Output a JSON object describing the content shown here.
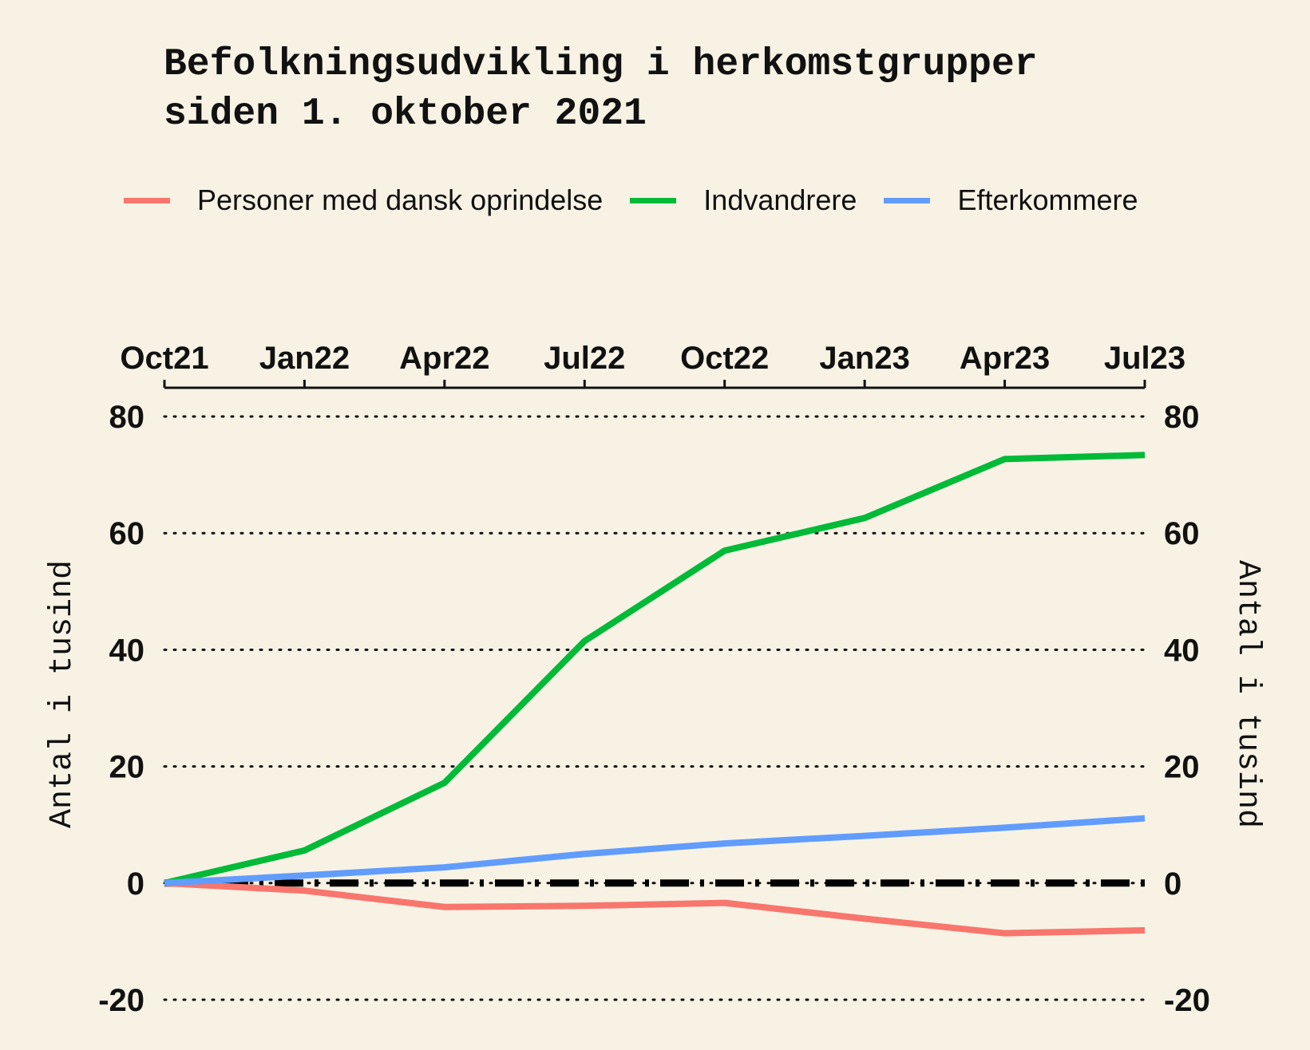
{
  "chart_data": {
    "type": "line",
    "title": "Befolkningsudvikling i herkomstgrupper\nsiden 1. oktober 2021",
    "x": [
      "Oct21",
      "Jan22",
      "Apr22",
      "Jul22",
      "Oct22",
      "Jan23",
      "Apr23",
      "Jul23"
    ],
    "xlabel": "",
    "ylabel": "Antal i tusind",
    "ylabel_right": "Antal i tusind",
    "ylim": [
      -20,
      80
    ],
    "yticks": [
      "-20",
      "0",
      "20",
      "40",
      "60",
      "80"
    ],
    "x_axis_position": "top",
    "grid": "horizontal dotted",
    "reference_line": {
      "y": 0,
      "style": "dash-dot",
      "color": "#000000"
    },
    "legend_position": "top",
    "series": [
      {
        "name": "Personer med dansk oprindelse",
        "color": "#f8766d",
        "values": [
          0,
          -1.3,
          -4.1,
          -3.9,
          -3.4,
          -6.1,
          -8.6,
          -8.1
        ]
      },
      {
        "name": "Indvandrere",
        "color": "#00ba38",
        "values": [
          0,
          5.6,
          17.2,
          41.5,
          57.0,
          62.6,
          72.7,
          73.4
        ]
      },
      {
        "name": "Efterkommere",
        "color": "#619cff",
        "values": [
          0,
          1.3,
          2.7,
          5.0,
          6.8,
          8.1,
          9.5,
          11.1
        ]
      }
    ]
  }
}
